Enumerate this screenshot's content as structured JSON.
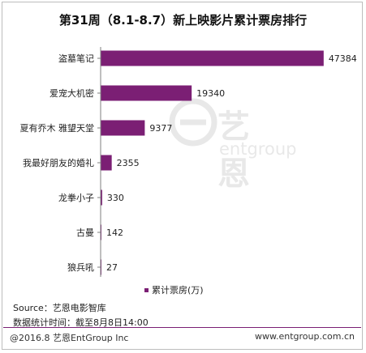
{
  "chart_data": {
    "type": "bar",
    "orientation": "horizontal",
    "title": "第31周（8.1-8.7）新上映影片累计票房排行",
    "categories": [
      "盗墓笔记",
      "爱宠大机密",
      "夏有乔木 雅望天堂",
      "我最好朋友的婚礼",
      "龙拳小子",
      "古曼",
      "狼兵吼"
    ],
    "series": [
      {
        "name": "累计票房(万)",
        "values": [
          47384,
          19340,
          9377,
          2355,
          330,
          142,
          27
        ],
        "color": "#7b1f74"
      }
    ],
    "xlim": [
      0,
      50000
    ],
    "grid": false,
    "legend_position": "bottom"
  },
  "source_text": "Source：艺恩电影智库",
  "stats_time": "数据统计时间：截至8月8日14:00",
  "footer_left": "@2016.8 艺恩EntGroup Inc",
  "footer_right": "www.entgroup.com.cn",
  "watermark_cn": "艺恩",
  "watermark_en": "entgroup",
  "colors": {
    "bar": "#7b1f74",
    "accent_line": "#7a1f73"
  }
}
